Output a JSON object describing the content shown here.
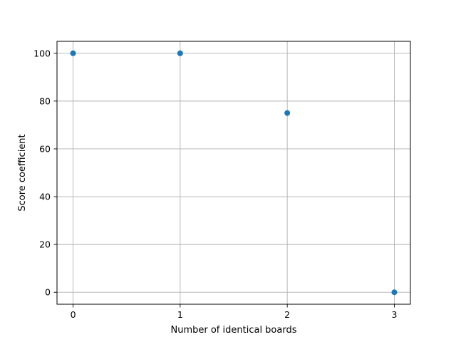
{
  "chart_data": {
    "type": "scatter",
    "title": "",
    "xlabel": "Number of identical boards",
    "ylabel": "Score coefficient",
    "xlim": [
      -0.15,
      3.15
    ],
    "ylim": [
      -5,
      105
    ],
    "xticks": [
      0,
      1,
      2,
      3
    ],
    "yticks": [
      0,
      20,
      40,
      60,
      80,
      100
    ],
    "grid": true,
    "series": [
      {
        "color": "#1f77b4",
        "x": [
          0,
          1,
          2,
          3
        ],
        "y": [
          100,
          100,
          75,
          0
        ]
      }
    ]
  }
}
